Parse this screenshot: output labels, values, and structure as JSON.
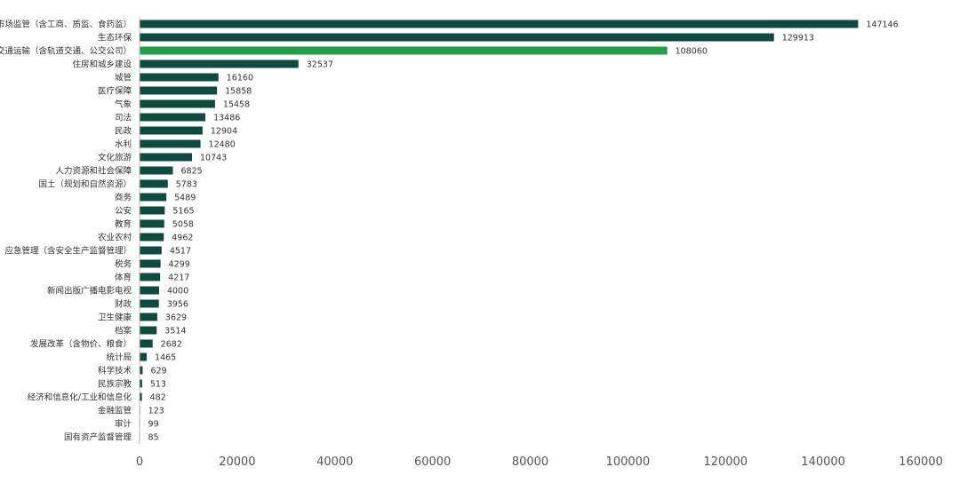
{
  "chart_data": {
    "type": "bar",
    "orientation": "horizontal",
    "title": "",
    "xlabel": "",
    "ylabel": "",
    "xlim": [
      0,
      160000
    ],
    "x_ticks": [
      "0",
      "20000",
      "40000",
      "60000",
      "80000",
      "100000",
      "120000",
      "140000",
      "160000"
    ],
    "grid": false,
    "legend": "none",
    "colors": {
      "default": "#0d4a3f",
      "highlight": "#1fa046",
      "axis": "#bfbfbf"
    },
    "highlight_category": "交通运输（含轨道交通、公交公司）",
    "categories": [
      "市场监管（含工商、质监、食药监）",
      "生态环保",
      "交通运输（含轨道交通、公交公司）",
      "住房和城乡建设",
      "城管",
      "医疗保障",
      "气象",
      "司法",
      "民政",
      "水利",
      "文化旅游",
      "人力资源和社会保障",
      "国土（规划和自然资源）",
      "商务",
      "公安",
      "教育",
      "农业农村",
      "应急管理（含安全生产监督管理）",
      "税务",
      "体育",
      "新闻出版广播电影电视",
      "财政",
      "卫生健康",
      "档案",
      "发展改革（含物价、粮食）",
      "统计局",
      "科学技术",
      "民族宗教",
      "经济和信息化/工业和信息化",
      "金融监管",
      "审计",
      "国有资产监督管理"
    ],
    "values": [
      147146,
      129913,
      108060,
      32537,
      16160,
      15858,
      15458,
      13486,
      12904,
      12480,
      10743,
      6825,
      5783,
      5489,
      5165,
      5058,
      4962,
      4517,
      4299,
      4217,
      4000,
      3956,
      3629,
      3514,
      2682,
      1465,
      629,
      513,
      482,
      123,
      99,
      85
    ]
  }
}
